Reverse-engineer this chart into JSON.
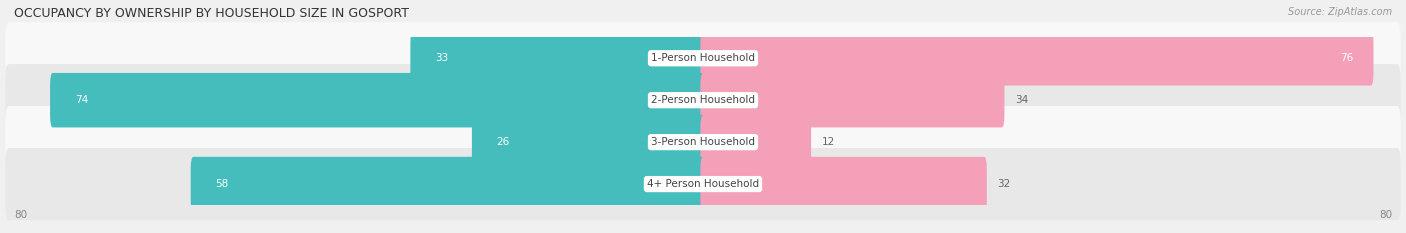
{
  "title": "OCCUPANCY BY OWNERSHIP BY HOUSEHOLD SIZE IN GOSPORT",
  "source": "Source: ZipAtlas.com",
  "categories": [
    "1-Person Household",
    "2-Person Household",
    "3-Person Household",
    "4+ Person Household"
  ],
  "owner_values": [
    33,
    74,
    26,
    58
  ],
  "renter_values": [
    76,
    34,
    12,
    32
  ],
  "max_val": 80,
  "owner_color": "#45BDBD",
  "renter_color": "#F4A0B8",
  "bg_color": "#f0f0f0",
  "row_bg_even": "#f8f8f8",
  "row_bg_odd": "#e8e8e8",
  "title_fontsize": 9,
  "source_fontsize": 7,
  "label_fontsize": 7.5,
  "value_fontsize": 7.5,
  "legend_fontsize": 8,
  "axis_tick_fontsize": 7.5
}
